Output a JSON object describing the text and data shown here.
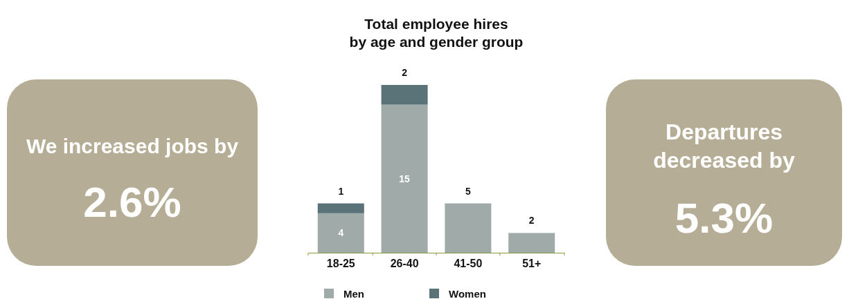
{
  "chart_data": [
    {
      "type": "other",
      "title": "We increased jobs by",
      "annotations": [
        "2.6%"
      ],
      "color": "#b5ad95"
    },
    {
      "type": "bar",
      "title": "Total employee hires\nby age and gender group",
      "categories": [
        "18-25",
        "26-40",
        "41-50",
        "51+"
      ],
      "stacked": true,
      "data_labels": true,
      "legend": "bottom",
      "series": [
        {
          "name": "Men",
          "color": "#a0aba9",
          "values": [
            4,
            15,
            5,
            2
          ]
        },
        {
          "name": "Women",
          "color": "#5a7378",
          "values": [
            1,
            2,
            null,
            null
          ]
        }
      ]
    },
    {
      "type": "other",
      "title": "Departures decreased by",
      "annotations": [
        "5.3%"
      ],
      "color": "#b5ad95"
    }
  ]
}
